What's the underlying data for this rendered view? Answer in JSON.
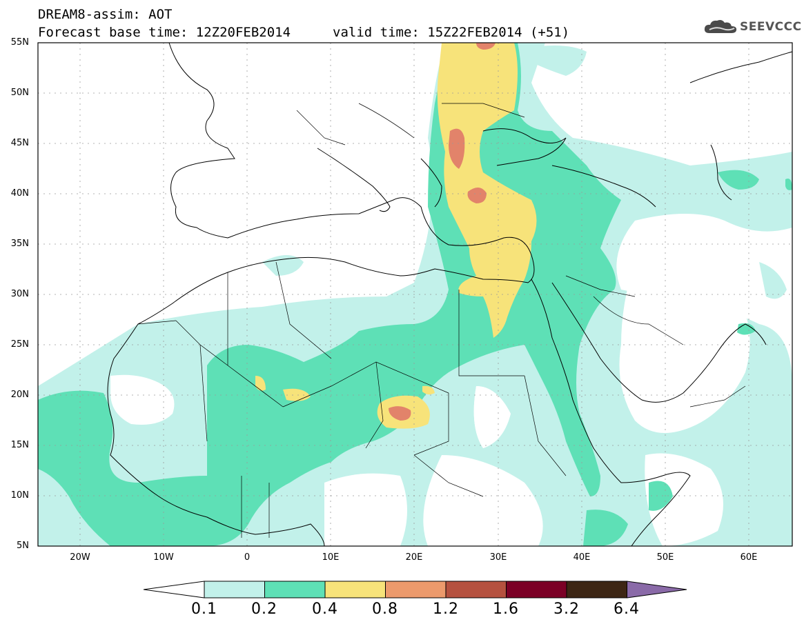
{
  "header": {
    "title": "DREAM8-assim: AOT",
    "base_time": "Forecast base time: 12Z20FEB2014",
    "valid_time": "valid time: 15Z22FEB2014 (+51)"
  },
  "logo": {
    "text": "SEEVCCC",
    "icon": "cloud-icon"
  },
  "map": {
    "lat_labels": [
      "55N",
      "50N",
      "45N",
      "40N",
      "35N",
      "30N",
      "25N",
      "20N",
      "15N",
      "10N",
      "5N"
    ],
    "lon_labels": [
      "20W",
      "10W",
      "0",
      "10E",
      "20E",
      "30E",
      "40E",
      "50E",
      "60E"
    ],
    "lon_range": [
      -25,
      65
    ],
    "lat_range": [
      5,
      55
    ]
  },
  "colorbar": {
    "labels": [
      "0.1",
      "0.2",
      "0.4",
      "0.8",
      "1.2",
      "1.6",
      "3.2",
      "6.4"
    ],
    "colors": [
      "#ffffff",
      "#c2f1ea",
      "#5ee0b6",
      "#f7e37a",
      "#ec9a6c",
      "#b5513f",
      "#7b0026",
      "#3d2614",
      "#8a6aa8"
    ]
  },
  "colors": {
    "level1": "#c2f1ea",
    "level2": "#5ee0b6",
    "level3": "#f7e37a",
    "level4": "#ec9a6c",
    "level5": "#c95c4a"
  }
}
